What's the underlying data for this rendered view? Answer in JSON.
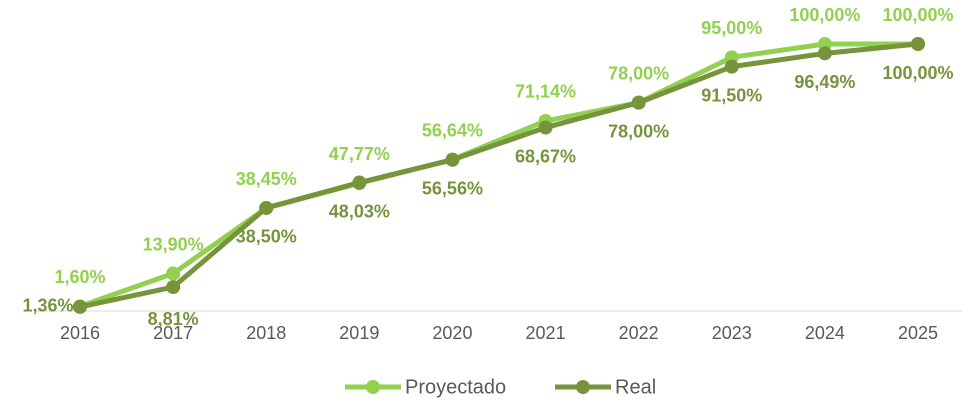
{
  "chart_data": {
    "type": "line",
    "categories": [
      "2016",
      "2017",
      "2018",
      "2019",
      "2020",
      "2021",
      "2022",
      "2023",
      "2024",
      "2025"
    ],
    "ylim": [
      0,
      100
    ],
    "legend": "bottom",
    "series": [
      {
        "name": "Proyectado",
        "color": "#92d050",
        "values": [
          1.6,
          13.9,
          38.45,
          47.77,
          56.64,
          71.14,
          78,
          95,
          100,
          100
        ],
        "value_labels": [
          "1,60%",
          "13,90%",
          "38,45%",
          "47,77%",
          "56,64%",
          "71,14%",
          "78,00%",
          "95,00%",
          "100,00%",
          "100,00%"
        ]
      },
      {
        "name": "Real",
        "color": "#77933c",
        "values": [
          1.36,
          8.81,
          38.5,
          48.03,
          56.56,
          68.67,
          78,
          91.5,
          96.49,
          100
        ],
        "value_labels": [
          "1,36%",
          "8,81%",
          "38,50%",
          "48,03%",
          "56,56%",
          "68,67%",
          "78,00%",
          "91,50%",
          "96,49%",
          "100,00%"
        ]
      }
    ]
  }
}
